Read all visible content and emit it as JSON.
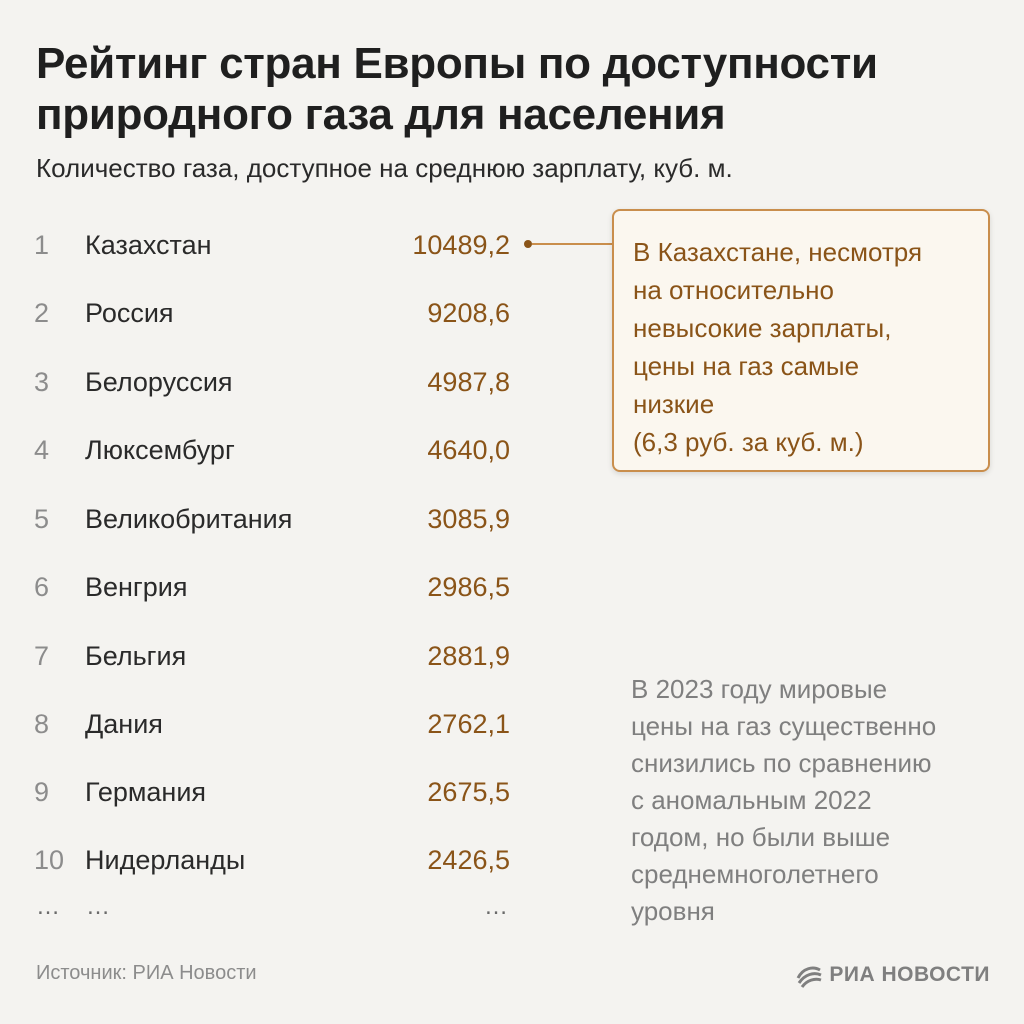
{
  "title_lines": [
    "Рейтинг стран Европы по доступности",
    "природного газа для населения"
  ],
  "subtitle": "Количество газа, доступное на среднюю зарплату, куб. м.",
  "chart_data": {
    "type": "table",
    "columns": [
      "rank",
      "country",
      "value"
    ],
    "rows": [
      {
        "rank": "1",
        "country": "Казахстан",
        "value": "10489,2"
      },
      {
        "rank": "2",
        "country": "Россия",
        "value": "9208,6"
      },
      {
        "rank": "3",
        "country": "Белоруссия",
        "value": "4987,8"
      },
      {
        "rank": "4",
        "country": "Люксембург",
        "value": "4640,0"
      },
      {
        "rank": "5",
        "country": "Великобритания",
        "value": "3085,9"
      },
      {
        "rank": "6",
        "country": "Венгрия",
        "value": "2986,5"
      },
      {
        "rank": "7",
        "country": "Бельгия",
        "value": "2881,9"
      },
      {
        "rank": "8",
        "country": "Дания",
        "value": "2762,1"
      },
      {
        "rank": "9",
        "country": "Германия",
        "value": "2675,5"
      },
      {
        "rank": "10",
        "country": "Нидерланды",
        "value": "2426,5"
      }
    ],
    "ellipsis": {
      "rank": "…",
      "country": "…",
      "value": "…"
    }
  },
  "callout_lines": [
    "В Казахстане, несмотря",
    "на относительно",
    "невысокие зарплаты,",
    "цены на газ самые",
    "низкие",
    "(6,3 руб. за куб. м.)"
  ],
  "note_lines": [
    "В 2023 году мировые",
    "цены на газ существенно",
    "снизились по сравнению",
    "с аномальным 2022",
    "годом, но были выше",
    "среднемноголетнего",
    "уровня"
  ],
  "source": "Источник: РИА Новости",
  "logo_text": "РИА НОВОСТИ",
  "colors": {
    "background": "#f4f3f0",
    "value": "#8a5418",
    "callout_border": "#c98e4c",
    "callout_bg": "#fbf7ef",
    "muted": "#8c8c8c"
  }
}
